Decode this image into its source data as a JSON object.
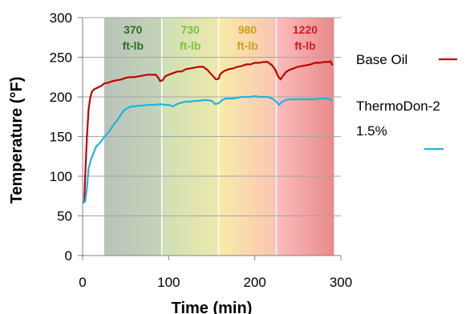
{
  "chart_data": {
    "type": "line",
    "title": "",
    "xlabel": "Time (min)",
    "ylabel": "Temperature (°F)",
    "xlim": [
      0,
      300
    ],
    "ylim": [
      0,
      300
    ],
    "xticks": [
      0,
      100,
      200,
      300
    ],
    "yticks": [
      0,
      50,
      100,
      150,
      200,
      250,
      300
    ],
    "grid": "horizontal",
    "legend_position": "right",
    "bands": [
      {
        "x_start": 25,
        "x_end": 92,
        "line1": "370",
        "line2": "ft-lb",
        "color_start": "#b9c3b9",
        "color_end": "#c4d4b8",
        "label_color": "#2e6b2e"
      },
      {
        "x_start": 92,
        "x_end": 158,
        "line1": "730",
        "line2": "ft-lb",
        "color_start": "#cde0b4",
        "color_end": "#ede9ad",
        "label_color": "#7cc242"
      },
      {
        "x_start": 158,
        "x_end": 225,
        "line1": "980",
        "line2": "ft-lb",
        "color_start": "#f7eca7",
        "color_end": "#fbc5b3",
        "label_color": "#c9a21a"
      },
      {
        "x_start": 225,
        "x_end": 292,
        "line1": "1220",
        "line2": "ft-lb",
        "color_start": "#fcbcbc",
        "color_end": "#e98a8a",
        "label_color": "#cc1e2a"
      }
    ],
    "series": [
      {
        "name": "Base Oil",
        "color": "#c00000",
        "points": [
          [
            0,
            66
          ],
          [
            2,
            68
          ],
          [
            3,
            100
          ],
          [
            5,
            150
          ],
          [
            7,
            185
          ],
          [
            9,
            200
          ],
          [
            11,
            207
          ],
          [
            14,
            210
          ],
          [
            18,
            212
          ],
          [
            22,
            214
          ],
          [
            25,
            217
          ],
          [
            30,
            218
          ],
          [
            35,
            220
          ],
          [
            40,
            221
          ],
          [
            45,
            222
          ],
          [
            50,
            224
          ],
          [
            55,
            225
          ],
          [
            60,
            225
          ],
          [
            65,
            226
          ],
          [
            70,
            227
          ],
          [
            75,
            228
          ],
          [
            80,
            228
          ],
          [
            85,
            228
          ],
          [
            88,
            224
          ],
          [
            90,
            220
          ],
          [
            93,
            221
          ],
          [
            96,
            226
          ],
          [
            100,
            228
          ],
          [
            105,
            230
          ],
          [
            110,
            232
          ],
          [
            115,
            232
          ],
          [
            120,
            235
          ],
          [
            125,
            236
          ],
          [
            130,
            237
          ],
          [
            135,
            238
          ],
          [
            140,
            238
          ],
          [
            145,
            234
          ],
          [
            150,
            228
          ],
          [
            155,
            222
          ],
          [
            158,
            223
          ],
          [
            160,
            229
          ],
          [
            165,
            233
          ],
          [
            170,
            235
          ],
          [
            175,
            236
          ],
          [
            180,
            238
          ],
          [
            185,
            239
          ],
          [
            190,
            241
          ],
          [
            195,
            241
          ],
          [
            200,
            243
          ],
          [
            205,
            243
          ],
          [
            210,
            244
          ],
          [
            215,
            244
          ],
          [
            220,
            240
          ],
          [
            224,
            234
          ],
          [
            227,
            226
          ],
          [
            230,
            222
          ],
          [
            233,
            227
          ],
          [
            236,
            231
          ],
          [
            240,
            234
          ],
          [
            245,
            236
          ],
          [
            250,
            238
          ],
          [
            255,
            239
          ],
          [
            260,
            240
          ],
          [
            265,
            241
          ],
          [
            270,
            243
          ],
          [
            275,
            243
          ],
          [
            280,
            244
          ],
          [
            285,
            244
          ],
          [
            288,
            245
          ],
          [
            290,
            240
          ]
        ]
      },
      {
        "name": "ThermoDon-2 1.5%",
        "legend_lines": [
          "ThermoDon-2",
          "1.5%"
        ],
        "color": "#1fb4e0",
        "points": [
          [
            0,
            66
          ],
          [
            3,
            68
          ],
          [
            5,
            85
          ],
          [
            7,
            110
          ],
          [
            10,
            122
          ],
          [
            13,
            130
          ],
          [
            16,
            138
          ],
          [
            20,
            142
          ],
          [
            24,
            148
          ],
          [
            28,
            153
          ],
          [
            32,
            158
          ],
          [
            36,
            165
          ],
          [
            40,
            170
          ],
          [
            44,
            177
          ],
          [
            48,
            183
          ],
          [
            52,
            186
          ],
          [
            56,
            188
          ],
          [
            60,
            188
          ],
          [
            65,
            189
          ],
          [
            70,
            189
          ],
          [
            75,
            190
          ],
          [
            80,
            190
          ],
          [
            85,
            190
          ],
          [
            90,
            191
          ],
          [
            95,
            190
          ],
          [
            100,
            190
          ],
          [
            105,
            188
          ],
          [
            108,
            190
          ],
          [
            112,
            192
          ],
          [
            116,
            193
          ],
          [
            120,
            194
          ],
          [
            125,
            194
          ],
          [
            130,
            195
          ],
          [
            135,
            195
          ],
          [
            140,
            196
          ],
          [
            145,
            196
          ],
          [
            150,
            195
          ],
          [
            154,
            191
          ],
          [
            158,
            192
          ],
          [
            162,
            196
          ],
          [
            166,
            198
          ],
          [
            170,
            198
          ],
          [
            175,
            198
          ],
          [
            180,
            199
          ],
          [
            185,
            200
          ],
          [
            190,
            200
          ],
          [
            195,
            200
          ],
          [
            200,
            201
          ],
          [
            205,
            200
          ],
          [
            210,
            200
          ],
          [
            215,
            200
          ],
          [
            220,
            198
          ],
          [
            225,
            194
          ],
          [
            228,
            190
          ],
          [
            232,
            194
          ],
          [
            236,
            196
          ],
          [
            240,
            197
          ],
          [
            245,
            197
          ],
          [
            250,
            197
          ],
          [
            255,
            197
          ],
          [
            260,
            197
          ],
          [
            265,
            197
          ],
          [
            270,
            197
          ],
          [
            275,
            198
          ],
          [
            280,
            198
          ],
          [
            285,
            198
          ],
          [
            290,
            195
          ]
        ]
      }
    ]
  }
}
